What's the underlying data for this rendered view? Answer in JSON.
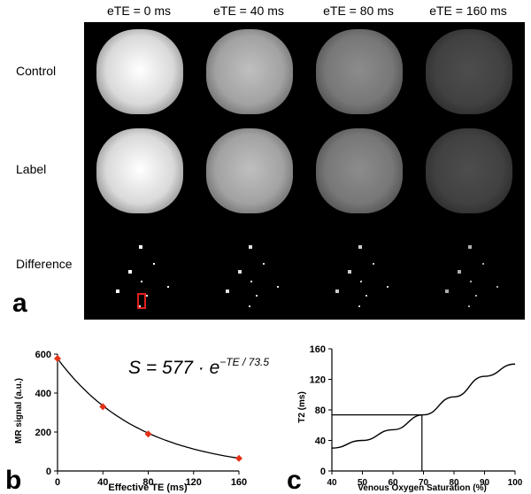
{
  "panel_a": {
    "letter": "a",
    "column_headers": [
      "eTE = 0 ms",
      "eTE = 40 ms",
      "eTE = 80 ms",
      "eTE = 160 ms"
    ],
    "row_labels": [
      "Control",
      "Label",
      "Difference"
    ],
    "brightness": [
      [
        1.0,
        0.75,
        0.55,
        0.3
      ],
      [
        1.0,
        0.75,
        0.55,
        0.3
      ],
      [
        0.15,
        0.12,
        0.1,
        0.07
      ]
    ]
  },
  "chart_data": [
    {
      "panel": "b",
      "type": "scatter",
      "xlabel": "Effective TE (ms)",
      "ylabel": "MR signal (a.u.)",
      "xticks": [
        "0",
        "40",
        "80",
        "120",
        "160"
      ],
      "yticks": [
        "0",
        "200",
        "400",
        "600"
      ],
      "xlim": [
        0,
        160
      ],
      "ylim": [
        0,
        600
      ],
      "points": [
        {
          "x": 0,
          "y": 577
        },
        {
          "x": 40,
          "y": 330
        },
        {
          "x": 80,
          "y": 190
        },
        {
          "x": 160,
          "y": 65
        }
      ],
      "fit": {
        "amplitude": 577,
        "t2": 73.5
      },
      "equation": "S = 577 · e^(−TE / 73.5)",
      "marker_color": "#e53118"
    },
    {
      "panel": "c",
      "type": "line",
      "xlabel": "Venous Oxygen Saturation (%)",
      "ylabel": "T2 (ms)",
      "xticks": [
        "40",
        "50",
        "60",
        "70",
        "80",
        "90",
        "100"
      ],
      "yticks": [
        "0",
        "40",
        "80",
        "120",
        "160"
      ],
      "xlim": [
        40,
        100
      ],
      "ylim": [
        0,
        160
      ],
      "curve": [
        {
          "x": 40,
          "y": 30
        },
        {
          "x": 50,
          "y": 40
        },
        {
          "x": 60,
          "y": 54
        },
        {
          "x": 70,
          "y": 73.5
        },
        {
          "x": 80,
          "y": 97
        },
        {
          "x": 90,
          "y": 124
        },
        {
          "x": 100,
          "y": 140
        }
      ],
      "reference": {
        "x": 69.5,
        "y": 73.5
      }
    }
  ]
}
